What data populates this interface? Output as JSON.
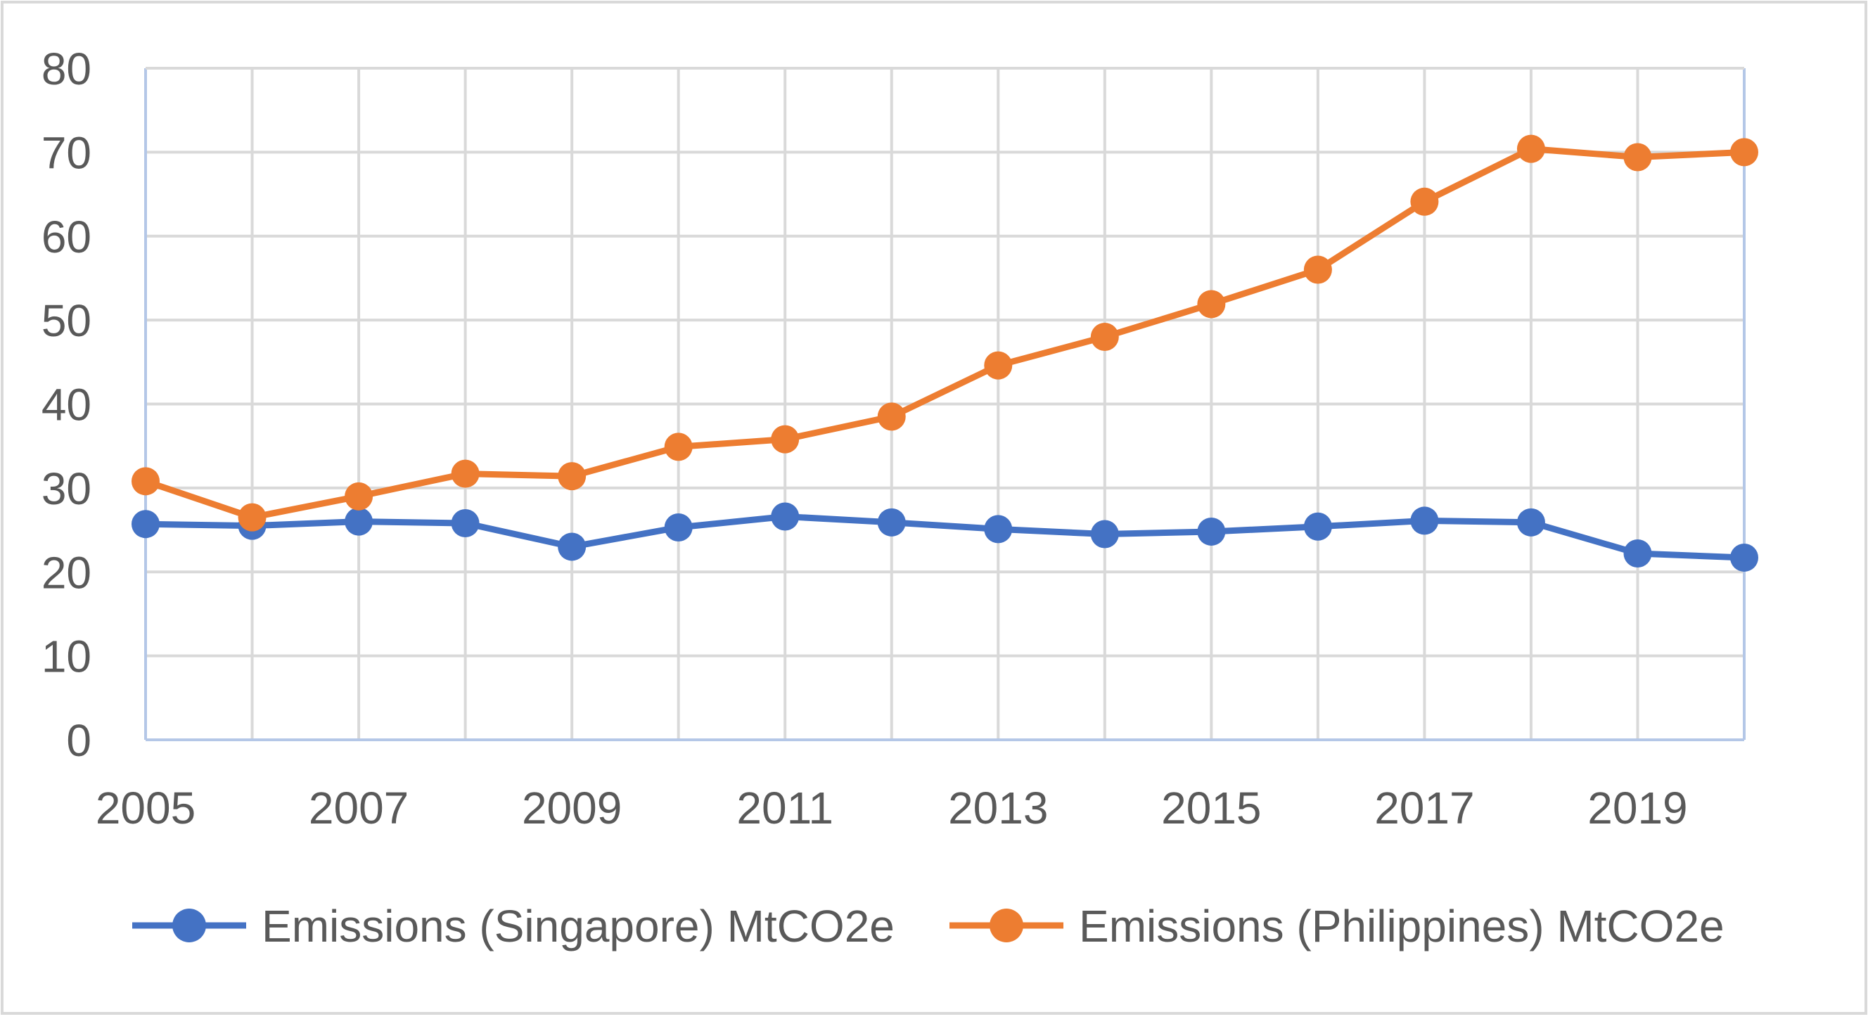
{
  "chart_data": {
    "type": "line",
    "title": "",
    "xlabel": "",
    "ylabel": "",
    "x": [
      2005,
      2006,
      2007,
      2008,
      2009,
      2010,
      2011,
      2012,
      2013,
      2014,
      2015,
      2016,
      2017,
      2018,
      2019,
      2020
    ],
    "x_tick_labels": [
      "2005",
      "2007",
      "2009",
      "2011",
      "2013",
      "2015",
      "2017",
      "2019"
    ],
    "xlim": [
      2005,
      2020
    ],
    "ylim": [
      0,
      80
    ],
    "y_tick_labels": [
      "0",
      "10",
      "20",
      "30",
      "40",
      "50",
      "60",
      "70",
      "80"
    ],
    "grid": true,
    "legend_position": "bottom",
    "series": [
      {
        "name": "Emissions (Singapore) MtCO2e",
        "color": "#4472C4",
        "values": [
          25.7,
          25.5,
          26.0,
          25.8,
          23.0,
          25.3,
          26.6,
          25.9,
          25.1,
          24.5,
          24.8,
          25.4,
          26.1,
          25.9,
          22.2,
          21.7
        ]
      },
      {
        "name": "Emissions (Philippines) MtCO2e",
        "color": "#ED7D31",
        "values": [
          30.8,
          26.5,
          29.0,
          31.7,
          31.4,
          34.9,
          35.8,
          38.5,
          44.6,
          48.0,
          51.9,
          56.0,
          64.1,
          70.4,
          69.4,
          70.0
        ]
      }
    ]
  },
  "colors": {
    "grid": "#D9D9D9",
    "axis": "#B4C7E7",
    "text": "#595959",
    "border": "#D9D9D9"
  }
}
